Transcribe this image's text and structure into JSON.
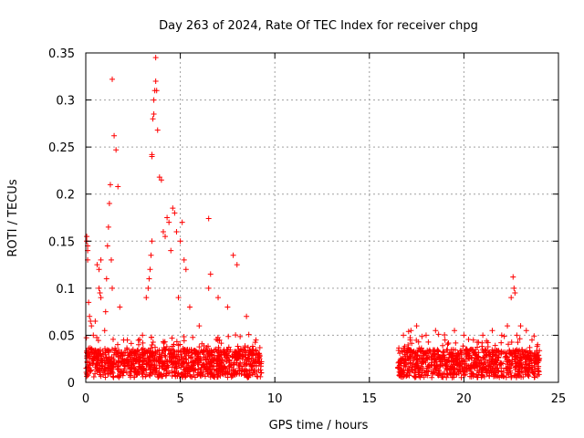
{
  "chart_data": {
    "type": "scatter",
    "title": "Day 263 of 2024, Rate Of TEC Index for receiver chpg",
    "xlabel": "GPS time / hours",
    "ylabel": "ROTI / TECUs",
    "xlim": [
      0,
      25
    ],
    "ylim": [
      0,
      0.35
    ],
    "xticks": [
      0,
      5,
      10,
      15,
      20,
      25
    ],
    "yticks": [
      0,
      0.05,
      0.1,
      0.15,
      0.2,
      0.25,
      0.3,
      0.35
    ],
    "ytick_labels": [
      "0",
      "0.05",
      "0.1",
      "0.15",
      "0.2",
      "0.25",
      "0.3",
      "0.35"
    ],
    "grid": true,
    "marker": "plus",
    "color": "#ff0000",
    "segments": [
      {
        "x_range": [
          0.0,
          9.3
        ],
        "base_range": [
          0.005,
          0.035
        ]
      },
      {
        "x_range": [
          16.5,
          24.0
        ],
        "base_range": [
          0.005,
          0.035
        ]
      }
    ],
    "x": [
      0.05,
      0.05,
      0.1,
      0.1,
      0.1,
      0.15,
      0.2,
      0.25,
      0.3,
      0.4,
      0.5,
      0.6,
      0.7,
      0.8,
      0.7,
      0.75,
      0.8,
      1.0,
      1.05,
      1.1,
      1.15,
      1.2,
      1.25,
      1.3,
      1.35,
      1.4,
      1.4,
      1.5,
      1.6,
      1.7,
      1.8,
      2.0,
      2.2,
      2.5,
      2.8,
      3.0,
      3.2,
      3.3,
      3.35,
      3.4,
      3.45,
      3.5,
      3.5,
      3.5,
      3.55,
      3.6,
      3.6,
      3.65,
      3.7,
      3.7,
      3.75,
      3.8,
      3.9,
      4.0,
      4.1,
      4.2,
      4.3,
      4.4,
      4.5,
      4.6,
      4.7,
      4.8,
      4.9,
      5.0,
      5.1,
      5.2,
      5.3,
      5.5,
      6.0,
      6.5,
      6.5,
      6.6,
      7.0,
      7.5,
      7.8,
      8.0,
      8.5,
      9.0,
      16.8,
      17.2,
      17.5,
      18.0,
      18.5,
      19.0,
      19.5,
      20.0,
      20.5,
      21.0,
      21.5,
      22.0,
      22.3,
      22.5,
      22.6,
      22.65,
      22.7,
      22.8,
      23.0,
      23.3,
      23.6,
      23.9
    ],
    "y": [
      0.155,
      0.15,
      0.145,
      0.14,
      0.13,
      0.085,
      0.07,
      0.065,
      0.06,
      0.05,
      0.065,
      0.125,
      0.12,
      0.13,
      0.1,
      0.095,
      0.09,
      0.055,
      0.075,
      0.11,
      0.145,
      0.165,
      0.19,
      0.21,
      0.13,
      0.1,
      0.322,
      0.262,
      0.247,
      0.208,
      0.08,
      0.045,
      0.045,
      0.035,
      0.04,
      0.05,
      0.09,
      0.1,
      0.11,
      0.12,
      0.135,
      0.15,
      0.24,
      0.242,
      0.28,
      0.3,
      0.285,
      0.31,
      0.32,
      0.345,
      0.31,
      0.268,
      0.218,
      0.215,
      0.16,
      0.155,
      0.175,
      0.17,
      0.14,
      0.185,
      0.18,
      0.16,
      0.09,
      0.15,
      0.17,
      0.13,
      0.12,
      0.08,
      0.06,
      0.1,
      0.174,
      0.115,
      0.09,
      0.08,
      0.135,
      0.125,
      0.07,
      0.045,
      0.05,
      0.055,
      0.06,
      0.05,
      0.055,
      0.045,
      0.055,
      0.05,
      0.045,
      0.05,
      0.055,
      0.05,
      0.06,
      0.09,
      0.112,
      0.1,
      0.095,
      0.05,
      0.06,
      0.055,
      0.045,
      0.04
    ]
  }
}
